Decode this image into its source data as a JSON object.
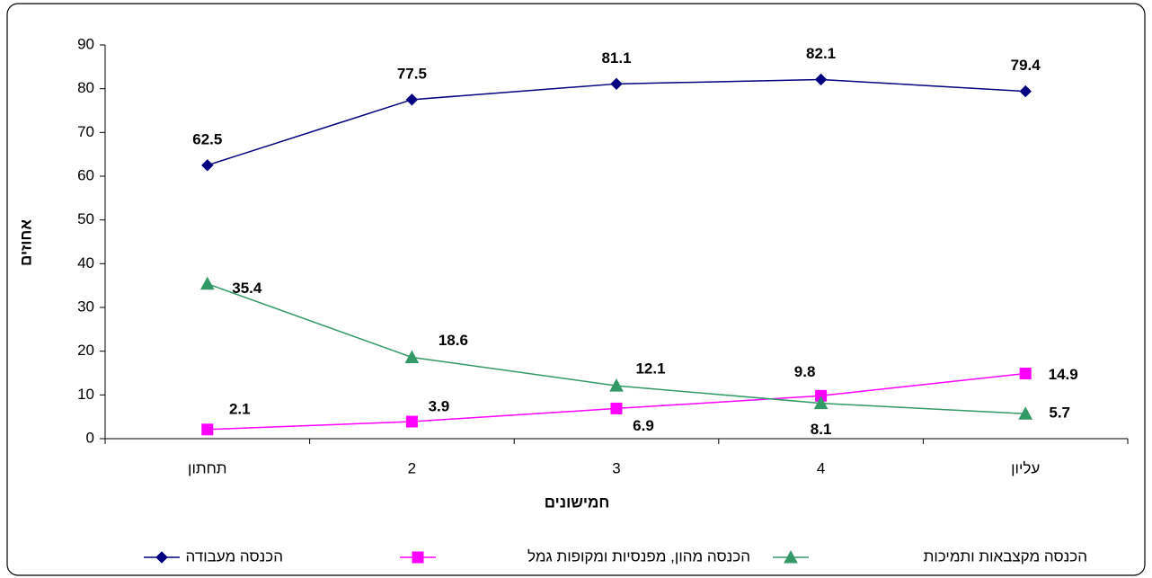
{
  "chart_data": {
    "type": "line",
    "xlabel": "חמישונים",
    "ylabel": "אחוזים",
    "categories": [
      "תחתון",
      "2",
      "3",
      "4",
      "עליון"
    ],
    "series": [
      {
        "name": "הכנסה מעבודה",
        "color": "#000080",
        "marker": "diamond",
        "values": [
          62.5,
          77.5,
          81.1,
          82.1,
          79.4
        ]
      },
      {
        "name": "הכנסה מהון, מפנסיות ומקופות גמל",
        "color": "#ff00ff",
        "marker": "square",
        "values": [
          2.1,
          3.9,
          6.9,
          9.8,
          14.9
        ]
      },
      {
        "name": "הכנסה מקצבאות ותמיכות",
        "color": "#339966",
        "marker": "triangle",
        "values": [
          35.4,
          18.6,
          12.1,
          8.1,
          5.7
        ]
      }
    ],
    "ylim": [
      0,
      90
    ],
    "yticks": [
      0,
      10,
      20,
      30,
      40,
      50,
      60,
      70,
      80,
      90
    ],
    "grid": false
  }
}
